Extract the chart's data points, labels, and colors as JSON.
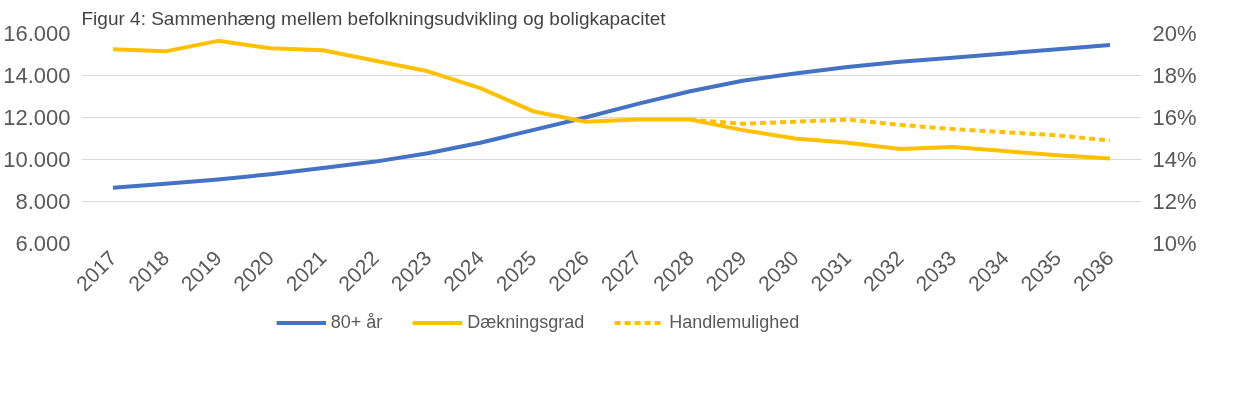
{
  "chart_data": {
    "type": "line",
    "title": "Figur 4: Sammenhæng mellem befolkningsudvikling og boligkapacitet",
    "categories": [
      "2017",
      "2018",
      "2019",
      "2020",
      "2021",
      "2022",
      "2023",
      "2024",
      "2025",
      "2026",
      "2027",
      "2028",
      "2029",
      "2030",
      "2031",
      "2032",
      "2033",
      "2034",
      "2035",
      "2036"
    ],
    "series": [
      {
        "name": "80+ år",
        "color": "#4472c4",
        "line_style": "solid",
        "values": [
          8650,
          8850,
          9050,
          9300,
          9600,
          9900,
          10300,
          10800,
          11400,
          12000,
          12650,
          13250,
          13750,
          14100,
          14400,
          14650,
          14850,
          15050,
          15250,
          15450
        ]
      },
      {
        "name": "Dækningsgrad",
        "color": "#ffc000",
        "axis": "y2",
        "line_style": "solid",
        "values": [
          19.25,
          19.15,
          19.65,
          19.3,
          19.2,
          18.7,
          18.2,
          17.4,
          16.3,
          15.8,
          15.9,
          15.9,
          15.4,
          15.0,
          14.8,
          14.5,
          14.6,
          14.4,
          14.2,
          14.05
        ]
      },
      {
        "name": "Handlemulighed",
        "color": "#ffc000",
        "axis": "y2",
        "line_style": "dashed",
        "values": [
          null,
          null,
          null,
          null,
          null,
          null,
          null,
          null,
          null,
          null,
          null,
          15.9,
          15.7,
          15.8,
          15.9,
          15.65,
          15.45,
          15.3,
          15.15,
          14.9
        ]
      }
    ],
    "ylim": [
      6000,
      16000
    ],
    "yticks": [
      {
        "value": 6000,
        "label": "6.000"
      },
      {
        "value": 8000,
        "label": "8.000"
      },
      {
        "value": 10000,
        "label": "10.000"
      },
      {
        "value": 12000,
        "label": "12.000"
      },
      {
        "value": 14000,
        "label": "14.000"
      },
      {
        "value": 16000,
        "label": "16.000"
      }
    ],
    "y2lim": [
      10,
      20
    ],
    "y2ticks": [
      {
        "value": 10,
        "label": "10%"
      },
      {
        "value": 12,
        "label": "12%"
      },
      {
        "value": 14,
        "label": "14%"
      },
      {
        "value": 16,
        "label": "16%"
      },
      {
        "value": 18,
        "label": "18%"
      },
      {
        "value": 20,
        "label": "20%"
      }
    ],
    "grid": "y",
    "legend": "bottom",
    "marker": "none"
  }
}
